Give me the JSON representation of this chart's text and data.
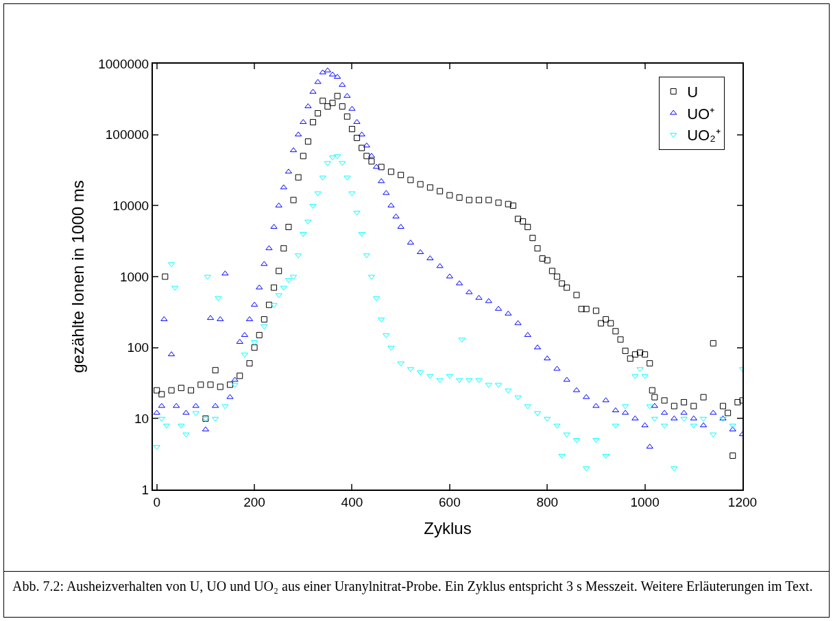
{
  "chart_data": {
    "type": "scatter",
    "xlabel": "Zyklus",
    "ylabel": "gezählte Ionen in 1000 ms",
    "log": "y",
    "grid": false,
    "legend": "top right",
    "xlim": [
      -8,
      1200
    ],
    "xticks": [
      0,
      200,
      400,
      600,
      800,
      1000,
      1200
    ],
    "ylim": [
      1,
      1000000
    ],
    "yticks": [
      1,
      10,
      100,
      1000,
      10000,
      100000,
      1000000
    ],
    "annotations": [
      "Abb. 7.2: Ausheizverhalten von U, UO und UO₂ aus einer Uranylnitrat-Probe. Ein Zyklus entspricht 3 s Messzeit. Weitere Erläuterungen im Text."
    ],
    "series": [
      {
        "name": "U",
        "color": "#000000",
        "marker": "square",
        "x": [
          0,
          10,
          17,
          30,
          50,
          70,
          90,
          100,
          110,
          120,
          130,
          150,
          170,
          190,
          200,
          210,
          220,
          230,
          240,
          250,
          260,
          270,
          280,
          290,
          300,
          310,
          320,
          330,
          340,
          350,
          360,
          370,
          380,
          390,
          400,
          410,
          420,
          430,
          440,
          460,
          480,
          500,
          520,
          540,
          560,
          580,
          600,
          620,
          640,
          660,
          680,
          700,
          720,
          730,
          740,
          750,
          760,
          770,
          780,
          790,
          800,
          810,
          820,
          830,
          840,
          860,
          870,
          880,
          900,
          910,
          920,
          930,
          940,
          950,
          960,
          970,
          980,
          990,
          1000,
          1010,
          1015,
          1020,
          1040,
          1060,
          1080,
          1100,
          1120,
          1140,
          1160,
          1170,
          1180,
          1190,
          1200
        ],
        "values": [
          25,
          22,
          1000,
          25,
          27,
          25,
          30,
          10,
          30,
          48,
          28,
          30,
          40,
          60,
          100,
          150,
          250,
          400,
          700,
          1200,
          2500,
          5000,
          12000,
          25000,
          50000,
          80000,
          150000,
          200000,
          300000,
          250000,
          280000,
          350000,
          250000,
          180000,
          120000,
          90000,
          65000,
          50000,
          42000,
          35000,
          30000,
          27000,
          23000,
          20000,
          18000,
          16000,
          14000,
          13000,
          12000,
          12000,
          12000,
          11000,
          10500,
          10000,
          6500,
          6000,
          5000,
          3500,
          2500,
          1800,
          1700,
          1200,
          1000,
          800,
          700,
          550,
          350,
          350,
          330,
          220,
          250,
          220,
          170,
          130,
          90,
          70,
          80,
          85,
          80,
          60,
          25,
          20,
          18,
          15,
          17,
          15,
          20,
          115,
          15,
          12,
          3,
          17,
          18
        ]
      },
      {
        "name": "UO⁺",
        "color": "#0000ff",
        "marker": "triangle",
        "x": [
          0,
          10,
          15,
          30,
          40,
          60,
          80,
          100,
          110,
          120,
          130,
          140,
          150,
          160,
          170,
          180,
          190,
          200,
          210,
          220,
          230,
          240,
          250,
          260,
          270,
          280,
          290,
          300,
          310,
          320,
          330,
          340,
          350,
          360,
          370,
          380,
          390,
          400,
          410,
          420,
          430,
          440,
          450,
          460,
          470,
          480,
          490,
          500,
          520,
          540,
          560,
          580,
          600,
          620,
          640,
          660,
          680,
          700,
          720,
          740,
          760,
          780,
          800,
          820,
          840,
          860,
          880,
          900,
          920,
          940,
          960,
          980,
          1000,
          1010,
          1020,
          1040,
          1060,
          1080,
          1100,
          1120,
          1140,
          1160,
          1180,
          1200
        ],
        "values": [
          12,
          15,
          250,
          80,
          15,
          12,
          15,
          7,
          260,
          15,
          250,
          1100,
          20,
          35,
          120,
          150,
          250,
          400,
          700,
          1500,
          2500,
          5000,
          10000,
          18000,
          30000,
          60000,
          100000,
          150000,
          250000,
          400000,
          550000,
          750000,
          800000,
          700000,
          650000,
          500000,
          350000,
          230000,
          150000,
          100000,
          70000,
          50000,
          35000,
          22000,
          15000,
          10000,
          7000,
          5000,
          3000,
          2200,
          1800,
          1400,
          1000,
          800,
          600,
          500,
          450,
          350,
          300,
          220,
          150,
          100,
          70,
          50,
          35,
          25,
          20,
          15,
          18,
          13,
          12,
          10,
          8,
          4,
          15,
          12,
          10,
          12,
          10,
          8,
          12,
          10,
          7,
          6
        ]
      },
      {
        "name": "UO₂⁺",
        "color": "#00ffff",
        "marker": "triangle-down",
        "x": [
          0,
          10,
          20,
          30,
          37,
          50,
          60,
          80,
          100,
          104,
          120,
          126,
          140,
          160,
          180,
          200,
          220,
          240,
          250,
          260,
          270,
          280,
          290,
          300,
          310,
          320,
          330,
          340,
          350,
          360,
          370,
          380,
          390,
          400,
          410,
          420,
          430,
          440,
          450,
          460,
          470,
          480,
          500,
          520,
          540,
          560,
          580,
          600,
          620,
          625,
          640,
          660,
          680,
          700,
          720,
          740,
          760,
          780,
          800,
          820,
          830,
          840,
          860,
          880,
          900,
          920,
          940,
          960,
          980,
          990,
          1000,
          1010,
          1020,
          1040,
          1060,
          1080,
          1100,
          1120,
          1140,
          1160,
          1180,
          1200
        ],
        "values": [
          4,
          10,
          8,
          1500,
          700,
          8,
          6,
          12,
          10,
          1000,
          10,
          500,
          15,
          30,
          80,
          120,
          200,
          400,
          550,
          700,
          900,
          1000,
          2000,
          4000,
          6000,
          10000,
          15000,
          25000,
          40000,
          48000,
          50000,
          40000,
          25000,
          15000,
          8000,
          4000,
          2000,
          1000,
          500,
          250,
          150,
          100,
          60,
          50,
          45,
          40,
          35,
          40,
          35,
          130,
          35,
          35,
          30,
          30,
          25,
          20,
          15,
          12,
          10,
          8,
          3,
          6,
          5,
          2,
          5,
          3,
          8,
          15,
          40,
          50,
          40,
          15,
          10,
          8,
          2,
          10,
          8,
          10,
          6,
          10,
          8,
          50
        ]
      }
    ]
  }
}
